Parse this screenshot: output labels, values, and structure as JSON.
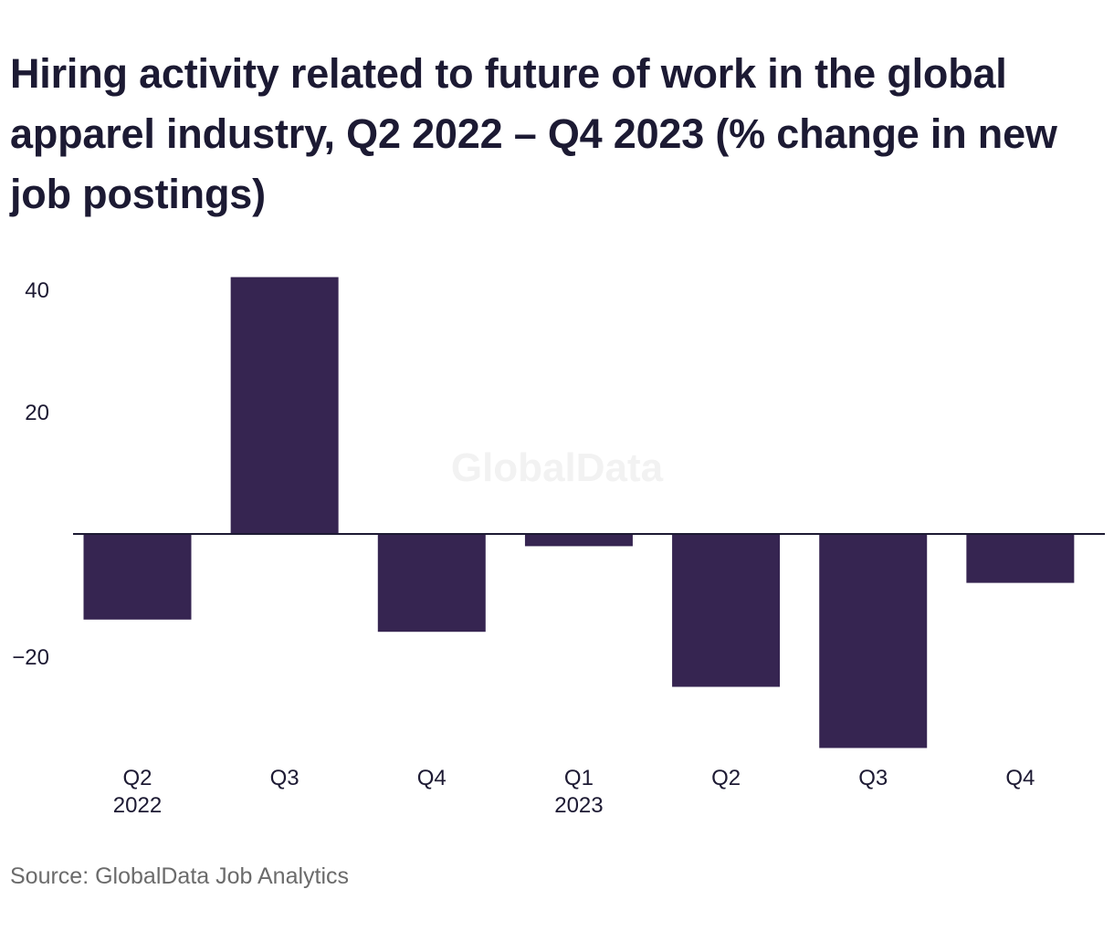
{
  "chart_data": {
    "type": "bar",
    "title": "Hiring activity related to future of work in the global apparel industry, Q2 2022 – Q4 2023 (% change in new job postings)",
    "categories": [
      "Q2",
      "Q3",
      "Q4",
      "Q1",
      "Q2",
      "Q3",
      "Q4"
    ],
    "category_years": [
      "2022",
      "",
      "",
      "2023",
      "",
      "",
      ""
    ],
    "values": [
      -14,
      42,
      -16,
      -2,
      -25,
      -35,
      -8
    ],
    "ylim": [
      -37,
      44
    ],
    "yticks": [
      40,
      20,
      -20
    ],
    "ytick_labels": [
      "40",
      "20",
      "−20"
    ],
    "xlabel": "",
    "ylabel": "",
    "grid": false,
    "bar_color": "#362551",
    "watermark": "GlobalData"
  },
  "source": "Source: GlobalData Job Analytics"
}
